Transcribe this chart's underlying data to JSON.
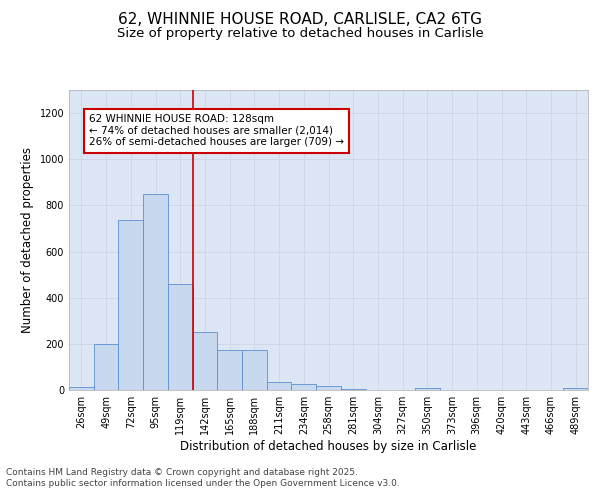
{
  "title_line1": "62, WHINNIE HOUSE ROAD, CARLISLE, CA2 6TG",
  "title_line2": "Size of property relative to detached houses in Carlisle",
  "xlabel": "Distribution of detached houses by size in Carlisle",
  "ylabel": "Number of detached properties",
  "categories": [
    "26sqm",
    "49sqm",
    "72sqm",
    "95sqm",
    "119sqm",
    "142sqm",
    "165sqm",
    "188sqm",
    "211sqm",
    "234sqm",
    "258sqm",
    "281sqm",
    "304sqm",
    "327sqm",
    "350sqm",
    "373sqm",
    "396sqm",
    "420sqm",
    "443sqm",
    "466sqm",
    "489sqm"
  ],
  "values": [
    13,
    200,
    735,
    850,
    460,
    250,
    175,
    175,
    35,
    25,
    18,
    5,
    0,
    0,
    8,
    0,
    0,
    0,
    0,
    0,
    8
  ],
  "bar_color": "#c8d9ef",
  "bar_edge_color": "#5b8fcf",
  "vline_color": "#cc0000",
  "annotation_text": "62 WHINNIE HOUSE ROAD: 128sqm\n← 74% of detached houses are smaller (2,014)\n26% of semi-detached houses are larger (709) →",
  "annotation_box_color": "#cc0000",
  "annotation_box_facecolor": "white",
  "ylim": [
    0,
    1300
  ],
  "yticks": [
    0,
    200,
    400,
    600,
    800,
    1000,
    1200
  ],
  "grid_color": "#d0d8e8",
  "background_color": "#dce6f5",
  "footer_text": "Contains HM Land Registry data © Crown copyright and database right 2025.\nContains public sector information licensed under the Open Government Licence v3.0.",
  "title_fontsize": 11,
  "subtitle_fontsize": 9.5,
  "label_fontsize": 8.5,
  "tick_fontsize": 7,
  "footer_fontsize": 6.5,
  "annotation_fontsize": 7.5
}
